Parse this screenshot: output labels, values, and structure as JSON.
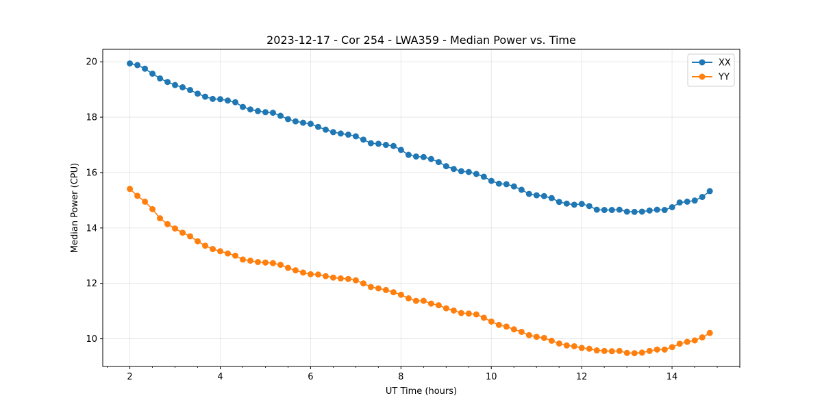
{
  "chart_data": {
    "type": "line",
    "title": "2023-12-17 - Cor 254 - LWA359 - Median Power vs. Time",
    "xlabel": "UT Time (hours)",
    "ylabel": "Median Power (CPU)",
    "xlim": [
      1.4,
      15.5
    ],
    "ylim": [
      9.0,
      20.45
    ],
    "xticks": [
      2,
      4,
      6,
      8,
      10,
      12,
      14
    ],
    "xtick_labels": [
      "2",
      "4",
      "6",
      "8",
      "10",
      "12",
      "14"
    ],
    "xminor_step": 0.5,
    "yticks": [
      10,
      12,
      14,
      16,
      18,
      20
    ],
    "ytick_labels": [
      "10",
      "12",
      "14",
      "16",
      "18",
      "20"
    ],
    "grid": true,
    "legend_position": "top-right",
    "x_start": 2.0,
    "x_step": 0.1667,
    "series": [
      {
        "name": "XX",
        "color": "#1f77b4",
        "values": [
          19.94,
          19.88,
          19.75,
          19.57,
          19.4,
          19.27,
          19.16,
          19.08,
          18.98,
          18.85,
          18.74,
          18.66,
          18.65,
          18.6,
          18.54,
          18.37,
          18.28,
          18.22,
          18.18,
          18.16,
          18.05,
          17.93,
          17.85,
          17.8,
          17.76,
          17.65,
          17.55,
          17.46,
          17.41,
          17.37,
          17.31,
          17.19,
          17.06,
          17.04,
          17.0,
          16.96,
          16.82,
          16.64,
          16.58,
          16.56,
          16.49,
          16.38,
          16.23,
          16.13,
          16.05,
          16.02,
          15.95,
          15.85,
          15.7,
          15.6,
          15.58,
          15.5,
          15.38,
          15.23,
          15.18,
          15.15,
          15.08,
          14.94,
          14.88,
          14.84,
          14.87,
          14.79,
          14.66,
          14.65,
          14.65,
          14.66,
          14.59,
          14.58,
          14.59,
          14.63,
          14.66,
          14.65,
          14.75,
          14.92,
          14.95,
          14.99,
          15.12,
          15.33
        ]
      },
      {
        "name": "YY",
        "color": "#ff7f0e",
        "values": [
          15.41,
          15.16,
          14.95,
          14.68,
          14.35,
          14.14,
          13.98,
          13.83,
          13.7,
          13.52,
          13.36,
          13.24,
          13.16,
          13.08,
          13.0,
          12.86,
          12.82,
          12.77,
          12.75,
          12.73,
          12.67,
          12.56,
          12.47,
          12.39,
          12.33,
          12.32,
          12.26,
          12.21,
          12.18,
          12.16,
          12.11,
          12.0,
          11.87,
          11.82,
          11.76,
          11.68,
          11.59,
          11.46,
          11.37,
          11.37,
          11.27,
          11.21,
          11.1,
          11.02,
          10.93,
          10.91,
          10.88,
          10.76,
          10.62,
          10.5,
          10.44,
          10.34,
          10.25,
          10.13,
          10.07,
          10.03,
          9.93,
          9.83,
          9.76,
          9.73,
          9.67,
          9.64,
          9.58,
          9.56,
          9.55,
          9.56,
          9.49,
          9.48,
          9.5,
          9.56,
          9.61,
          9.61,
          9.7,
          9.82,
          9.89,
          9.94,
          10.05,
          10.21
        ]
      }
    ]
  }
}
